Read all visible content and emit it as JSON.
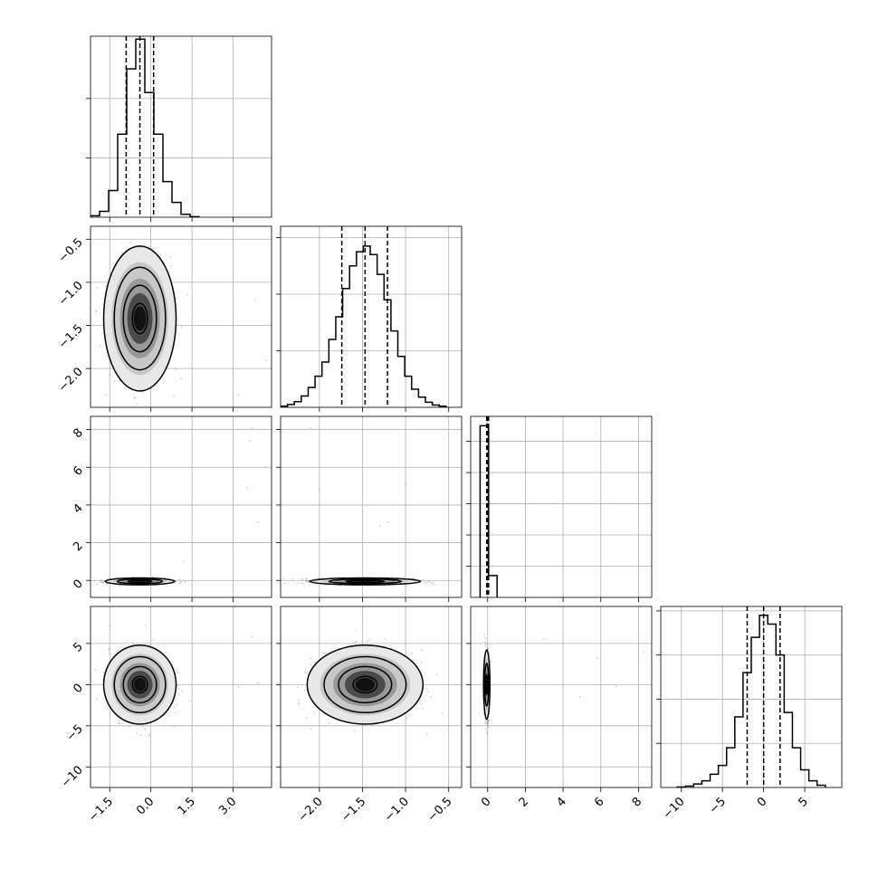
{
  "chart_data": {
    "type": "corner",
    "parameters": [
      {
        "lim": [
          -2.2,
          4.4
        ],
        "ticks": [
          -1.5,
          0.0,
          1.5,
          3.0
        ],
        "tick_labels": [
          "−1.5",
          "0.0",
          "1.5",
          "3.0"
        ],
        "hist_ticks": [
          2,
          4
        ],
        "hist_ylim": [
          0,
          6.1
        ]
      },
      {
        "lim": [
          -2.45,
          -0.35
        ],
        "ticks": [
          -2.0,
          -1.5,
          -1.0,
          -0.5
        ],
        "tick_labels": [
          "−2.0",
          "−1.5",
          "−1.0",
          "−0.5"
        ],
        "hist_ticks": [
          1,
          2,
          3
        ],
        "hist_ylim": [
          0,
          3.2
        ]
      },
      {
        "lim": [
          -0.9,
          8.7
        ],
        "ticks": [
          0,
          2,
          4,
          6,
          8
        ],
        "tick_labels": [
          "0",
          "2",
          "4",
          "6",
          "8"
        ],
        "hist_ticks": [
          1,
          2,
          3,
          4,
          5
        ],
        "hist_ylim": [
          0,
          5.8
        ]
      },
      {
        "lim": [
          -12.5,
          9.5
        ],
        "ticks": [
          -10,
          -5,
          0,
          5
        ],
        "tick_labels": [
          "−10",
          "−5",
          "0",
          "5"
        ],
        "hist_ticks": [
          1,
          2,
          3,
          4
        ],
        "hist_ylim": [
          0,
          4.1
        ]
      }
    ],
    "histograms": [
      {
        "param": 0,
        "edges": [
          -2.2,
          -1.87,
          -1.54,
          -1.21,
          -0.88,
          -0.55,
          -0.22,
          0.11,
          0.44,
          0.77,
          1.1,
          1.43,
          1.76
        ],
        "counts": [
          0.05,
          0.2,
          0.9,
          2.8,
          5.0,
          6.0,
          4.2,
          2.8,
          1.2,
          0.5,
          0.1,
          0.02
        ],
        "quantiles": [
          -0.9,
          -0.4,
          0.1
        ]
      },
      {
        "param": 1,
        "edges": [
          -2.45,
          -2.37,
          -2.29,
          -2.21,
          -2.13,
          -2.05,
          -1.97,
          -1.89,
          -1.81,
          -1.73,
          -1.65,
          -1.57,
          -1.49,
          -1.41,
          -1.33,
          -1.25,
          -1.17,
          -1.09,
          -1.01,
          -0.93,
          -0.85,
          -0.77,
          -0.69,
          -0.61,
          -0.53
        ],
        "counts": [
          0.02,
          0.05,
          0.1,
          0.2,
          0.35,
          0.55,
          0.8,
          1.2,
          1.6,
          2.1,
          2.5,
          2.75,
          2.85,
          2.7,
          2.35,
          1.9,
          1.35,
          0.9,
          0.55,
          0.32,
          0.18,
          0.09,
          0.04,
          0.02
        ],
        "quantiles": [
          -1.74,
          -1.47,
          -1.21
        ]
      },
      {
        "param": 2,
        "edges": [
          -0.4,
          0.05,
          0.5
        ],
        "counts": [
          5.5,
          0.7
        ],
        "quantiles": [
          -0.05,
          0.0,
          0.05
        ]
      },
      {
        "param": 3,
        "edges": [
          -10.5,
          -9.5,
          -8.5,
          -7.5,
          -6.5,
          -5.5,
          -4.5,
          -3.5,
          -2.5,
          -1.5,
          -0.5,
          0.5,
          1.5,
          2.5,
          3.5,
          4.5,
          5.5,
          6.5,
          7.5
        ],
        "counts": [
          0.01,
          0.03,
          0.08,
          0.15,
          0.3,
          0.5,
          0.9,
          1.6,
          2.6,
          3.4,
          3.9,
          3.7,
          3.0,
          1.7,
          0.9,
          0.4,
          0.15,
          0.05
        ],
        "quantiles": [
          -2.0,
          0.0,
          2.0
        ]
      }
    ],
    "panels": [
      {
        "x": 0,
        "y": 1,
        "center": [
          -0.4,
          -1.42
        ],
        "spread": [
          0.55,
          0.35
        ],
        "contour_scales": [
          0.5,
          1.1,
          1.7,
          2.4
        ],
        "outliers": [
          [
            3.8,
            -1.2
          ],
          [
            3.2,
            -2.3
          ],
          [
            4.2,
            -1.9
          ]
        ]
      },
      {
        "x": 0,
        "y": 2,
        "center": [
          -0.4,
          -0.05
        ],
        "spread": [
          0.55,
          0.08
        ],
        "contour_scales": [
          0.8,
          1.5,
          2.3
        ],
        "outliers": [
          [
            3.7,
            8.1
          ],
          [
            3.6,
            7.4
          ],
          [
            4.2,
            6.0
          ],
          [
            3.5,
            4.9
          ],
          [
            3.9,
            3.1
          ],
          [
            1.2,
            1.0
          ]
        ]
      },
      {
        "x": 1,
        "y": 2,
        "center": [
          -1.47,
          -0.05
        ],
        "spread": [
          0.28,
          0.08
        ],
        "contour_scales": [
          0.8,
          1.5,
          2.3
        ],
        "outliers": [
          [
            -2.1,
            8.1
          ],
          [
            -2.0,
            4.8
          ],
          [
            -1.3,
            2.9
          ],
          [
            -1.2,
            3.1
          ],
          [
            -1.0,
            5.1
          ]
        ]
      },
      {
        "x": 0,
        "y": 3,
        "center": [
          -0.4,
          0.0
        ],
        "spread": [
          0.55,
          2.0
        ],
        "contour_scales": [
          0.5,
          1.1,
          1.7,
          2.4
        ],
        "outliers": [
          [
            3.7,
            5.8
          ],
          [
            3.9,
            0.2
          ],
          [
            3.2,
            -0.3
          ]
        ]
      },
      {
        "x": 1,
        "y": 3,
        "center": [
          -1.47,
          0.0
        ],
        "spread": [
          0.28,
          2.0
        ],
        "contour_scales": [
          0.5,
          1.1,
          1.7,
          2.4
        ],
        "outliers": []
      },
      {
        "x": 2,
        "y": 3,
        "center": [
          -0.05,
          0.0
        ],
        "spread": [
          0.08,
          2.0
        ],
        "contour_scales": [
          0.6,
          1.3,
          2.1
        ],
        "outliers": [
          [
            3.0,
            5.5
          ],
          [
            5.8,
            3.2
          ],
          [
            6.8,
            -0.2
          ],
          [
            4.9,
            -1.5
          ],
          [
            8.3,
            4.0
          ]
        ]
      }
    ]
  }
}
